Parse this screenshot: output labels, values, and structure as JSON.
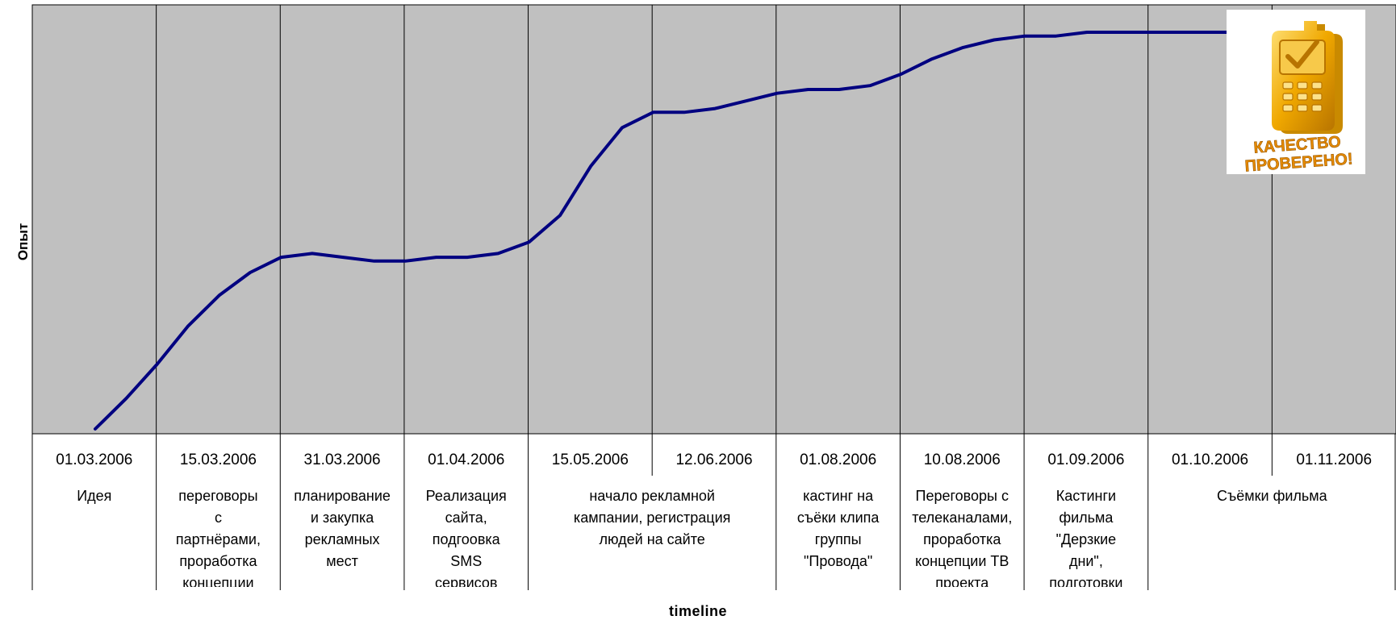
{
  "chart_data": {
    "type": "line",
    "xlabel": "timeline",
    "ylabel": "Опыт",
    "y_axis_ticks": false,
    "grid": "vertical",
    "plot_background": "#c0c0c0",
    "line_color": "#000080",
    "periods": [
      {
        "date": "01.03.2006",
        "event": "Идея"
      },
      {
        "date": "15.03.2006",
        "event": "переговоры\nс\nпартнёрами,\nпроработка\nконцепции"
      },
      {
        "date": "31.03.2006",
        "event": "планирование\nи закупка\nрекламных\nмест"
      },
      {
        "date": "01.04.2006",
        "event": "Реализация\nсайта,\nподгоовка\nSMS\nсервисов"
      },
      {
        "date": "15.05.2006",
        "event": "начало рекламной\nкампании, регистрация\nлюдей на сайте"
      },
      {
        "date": "12.06.2006",
        "event": ""
      },
      {
        "date": "01.08.2006",
        "event": "кастинг на\nсъёки клипа\nгруппы\n\"Провода\""
      },
      {
        "date": "10.08.2006",
        "event": "Переговоры с\nтелеканалами,\nпроработка\nконцепции ТВ\nпроекта"
      },
      {
        "date": "01.09.2006",
        "event": "Кастинги\nфильма\n\"Дерзкие\nдни\",\nподготовки"
      },
      {
        "date": "01.10.2006",
        "event": "Съёмки фильма"
      },
      {
        "date": "01.11.2006",
        "event": ""
      }
    ],
    "series": [
      {
        "color": "#000080",
        "x": [
          0.0,
          0.25,
          0.5,
          0.75,
          1.0,
          1.25,
          1.5,
          1.75,
          2.0,
          2.25,
          2.5,
          2.75,
          3.0,
          3.25,
          3.5,
          3.75,
          4.0,
          4.25,
          4.5,
          4.75,
          5.0,
          5.25,
          5.5,
          5.75,
          6.0,
          6.25,
          6.5,
          6.75,
          7.0,
          7.25,
          7.5,
          7.75,
          8.0,
          8.25,
          8.5,
          8.75,
          9.0,
          9.25,
          9.5,
          9.75,
          10.0
        ],
        "y": [
          0,
          8,
          17,
          27,
          35,
          41,
          45,
          46,
          45,
          44,
          44,
          45,
          45,
          46,
          49,
          56,
          69,
          79,
          83,
          83,
          84,
          86,
          88,
          89,
          89,
          90,
          93,
          97,
          100,
          102,
          103,
          103,
          104,
          104,
          104,
          104,
          104,
          104,
          104,
          104,
          104
        ]
      }
    ],
    "ylim": [
      0,
      104
    ]
  },
  "badge": {
    "line1": "КАЧЕСТВО",
    "line2": "ПРОВЕРЕНО!",
    "icon": "phone-checkmark-icon"
  }
}
